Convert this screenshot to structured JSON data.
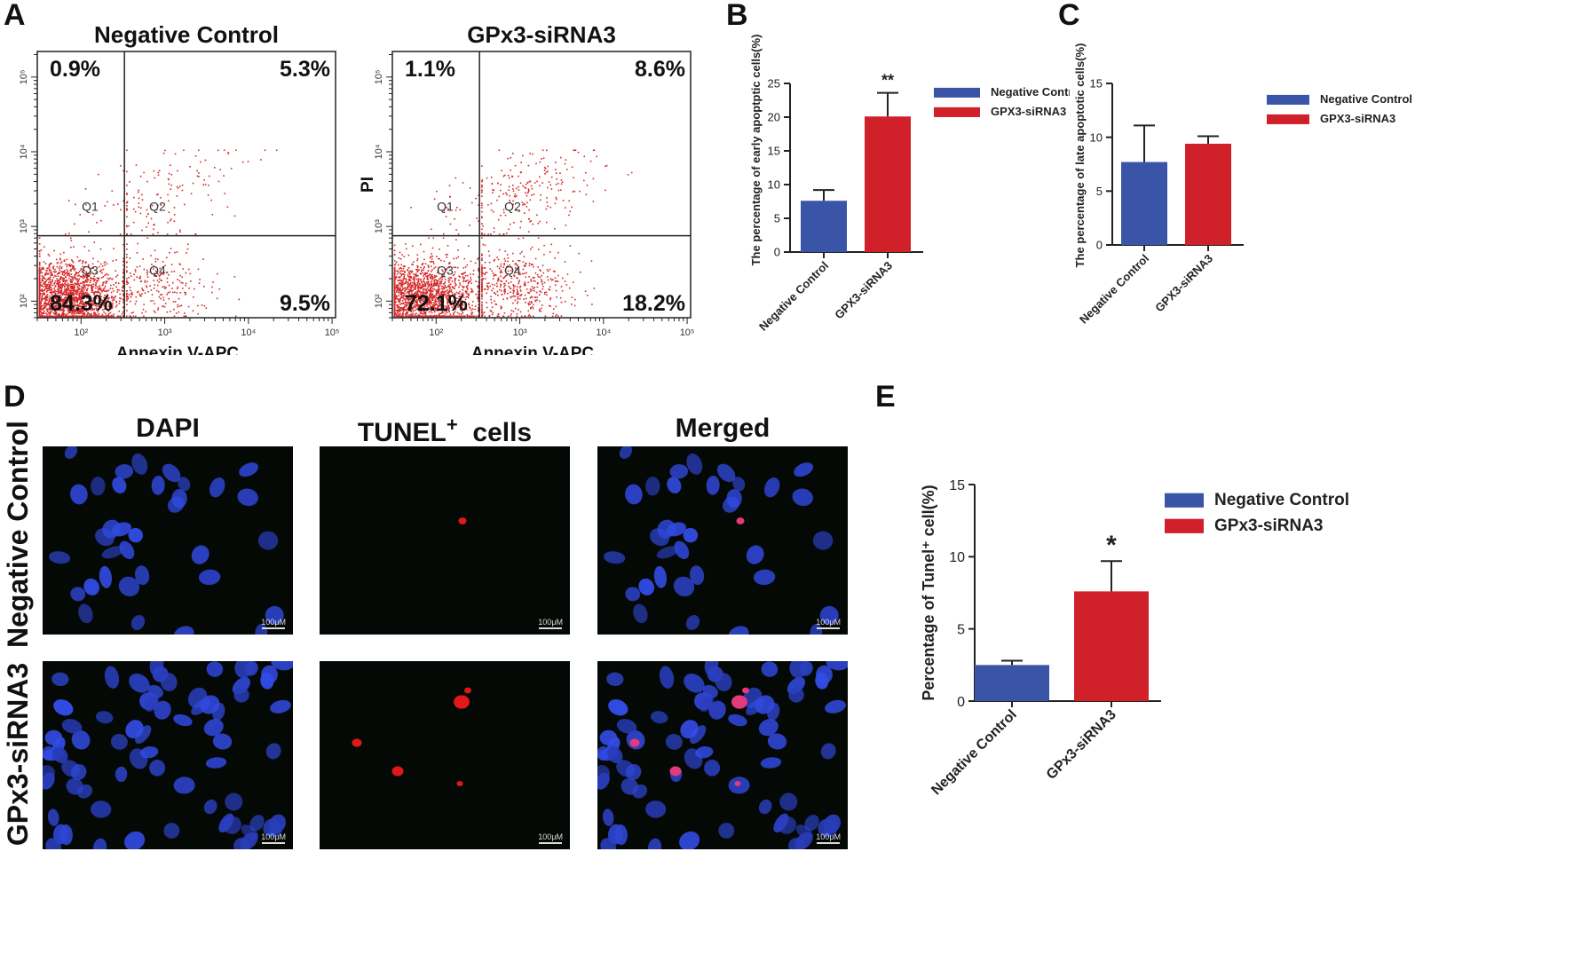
{
  "panels": {
    "A": "A",
    "B": "B",
    "C": "C",
    "D": "D",
    "E": "E"
  },
  "chart_data": [
    {
      "id": "A-left",
      "type": "scatter",
      "title": "Negative Control",
      "xlabel": "Annexin V-APC",
      "ylabel": "",
      "x_scale": "log",
      "y_scale": "log",
      "xlim": [
        30,
        110000
      ],
      "ylim": [
        60,
        220000
      ],
      "x_ticks": [
        "10²",
        "10³",
        "10⁴",
        "10⁵"
      ],
      "y_ticks": [
        "10²",
        "10³",
        "10⁴",
        "10⁵"
      ],
      "gate_x": 330,
      "gate_y": 750,
      "quadrant_labels": [
        "Q1",
        "Q2",
        "Q3",
        "Q4"
      ],
      "quadrant_percents": {
        "Q1": "0.9%",
        "Q2": "5.3%",
        "Q3": "84.3%",
        "Q4": "9.5%"
      },
      "color": "#d42a2a"
    },
    {
      "id": "A-right",
      "type": "scatter",
      "title": "GPx3-siRNA3",
      "xlabel": "Annexin V-APC",
      "ylabel": "PI",
      "x_scale": "log",
      "y_scale": "log",
      "xlim": [
        30,
        110000
      ],
      "ylim": [
        60,
        220000
      ],
      "x_ticks": [
        "10²",
        "10³",
        "10⁴",
        "10⁵"
      ],
      "y_ticks": [
        "10²",
        "10³",
        "10⁴",
        "10⁵"
      ],
      "gate_x": 330,
      "gate_y": 750,
      "quadrant_labels": [
        "Q1",
        "Q2",
        "Q3",
        "Q4"
      ],
      "quadrant_percents": {
        "Q1": "1.1%",
        "Q2": "8.6%",
        "Q3": "72.1%",
        "Q4": "18.2%"
      },
      "color": "#d42a2a"
    },
    {
      "id": "B",
      "type": "bar",
      "title": "",
      "ylabel": "The percentage of early apoptptic cells(%)",
      "categories": [
        "Negative Control",
        "GPX3-siRNA3"
      ],
      "values": [
        7.6,
        20.1
      ],
      "errors": [
        1.6,
        3.5
      ],
      "colors": [
        "#3a55a8",
        "#d0202a"
      ],
      "ylim": [
        0,
        25
      ],
      "yticks": [
        0,
        5,
        10,
        15,
        20,
        25
      ],
      "significance": [
        "",
        "**"
      ],
      "legend": [
        "Negative Control",
        "GPX3-siRNA3"
      ],
      "legend_position": "right"
    },
    {
      "id": "C",
      "type": "bar",
      "title": "",
      "ylabel": "The percentage of late apoptotic cells(%)",
      "categories": [
        "Negative Control",
        "GPX3-siRNA3"
      ],
      "values": [
        7.7,
        9.4
      ],
      "errors": [
        3.4,
        0.7
      ],
      "colors": [
        "#3a55a8",
        "#d0202a"
      ],
      "ylim": [
        0,
        15
      ],
      "yticks": [
        0,
        5,
        10,
        15
      ],
      "significance": [
        "",
        ""
      ],
      "legend": [
        "Negative Control",
        "GPX3-siRNA3"
      ],
      "legend_position": "right"
    },
    {
      "id": "E",
      "type": "bar",
      "title": "",
      "ylabel": "Percentage of Tunel⁺ cell(%)",
      "categories": [
        "Negative Control",
        "GPx3-siRNA3"
      ],
      "values": [
        2.5,
        7.6
      ],
      "errors": [
        0.3,
        2.1
      ],
      "colors": [
        "#3a55a8",
        "#d0202a"
      ],
      "ylim": [
        0,
        15
      ],
      "yticks": [
        0,
        5,
        10,
        15
      ],
      "significance": [
        "",
        "*"
      ],
      "legend": [
        "Negative Control",
        "GPx3-siRNA3"
      ],
      "legend_position": "right"
    }
  ],
  "microscopy": {
    "column_headers": [
      "DAPI",
      "TUNEL",
      "+",
      "cells",
      "Merged"
    ],
    "row_headers": [
      "Negative Control",
      "GPx3-siRNA3"
    ],
    "scale_bar": "100μM"
  }
}
